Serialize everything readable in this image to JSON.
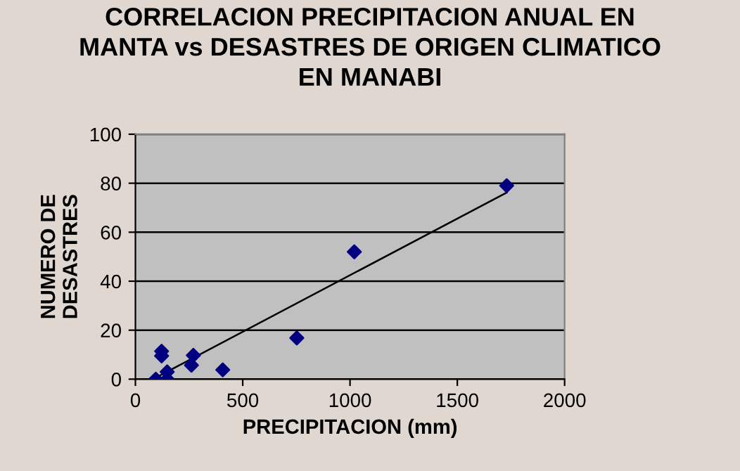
{
  "chart_data": {
    "type": "scatter",
    "title": "CORRELACION PRECIPITACION ANUAL EN\nMANTA vs DESASTRES DE ORIGEN CLIMATICO\nEN MANABI",
    "xlabel": "PRECIPITACION (mm)",
    "ylabel": "NUMERO DE\nDESASTRES",
    "series": [
      {
        "color": "#000080",
        "marker": "diamond",
        "x": [
          95,
          122,
          122,
          148,
          148,
          261,
          270,
          407,
          752,
          1020,
          1730
        ],
        "values": [
          0,
          11.4,
          9.5,
          3,
          0,
          5.7,
          9.7,
          3.8,
          16.8,
          52,
          79
        ]
      },
      {
        "type": "line",
        "marker": "none",
        "color": "#000000",
        "x": [
          110,
          1730
        ],
        "values": [
          1.3,
          76.2
        ]
      }
    ],
    "xlim": [
      0,
      2000
    ],
    "ylim": [
      0,
      100
    ],
    "xticks": [
      0,
      500,
      1000,
      1500,
      2000
    ],
    "yticks": [
      0,
      20,
      40,
      60,
      80,
      100
    ],
    "grid": "y"
  }
}
